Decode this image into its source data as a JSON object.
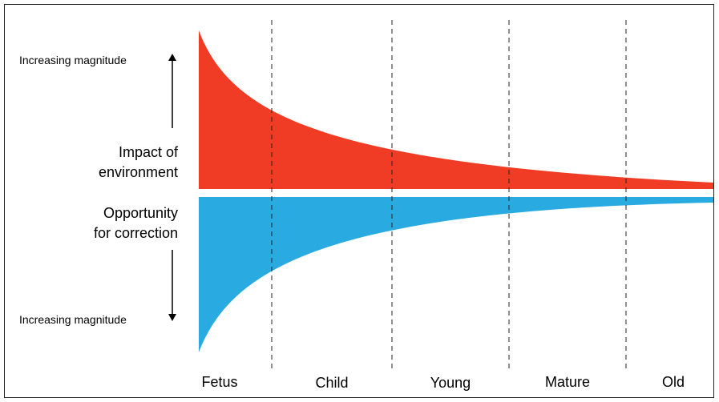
{
  "left_labels": {
    "top_magnitude": "Increasing magnitude",
    "impact": [
      "Impact of",
      "environment"
    ],
    "opportunity": [
      "Opportunity",
      "for correction"
    ],
    "bottom_magnitude": "Increasing magnitude"
  },
  "stages": [
    "Fetus",
    "Child",
    "Young",
    "Mature",
    "Old"
  ]
}
